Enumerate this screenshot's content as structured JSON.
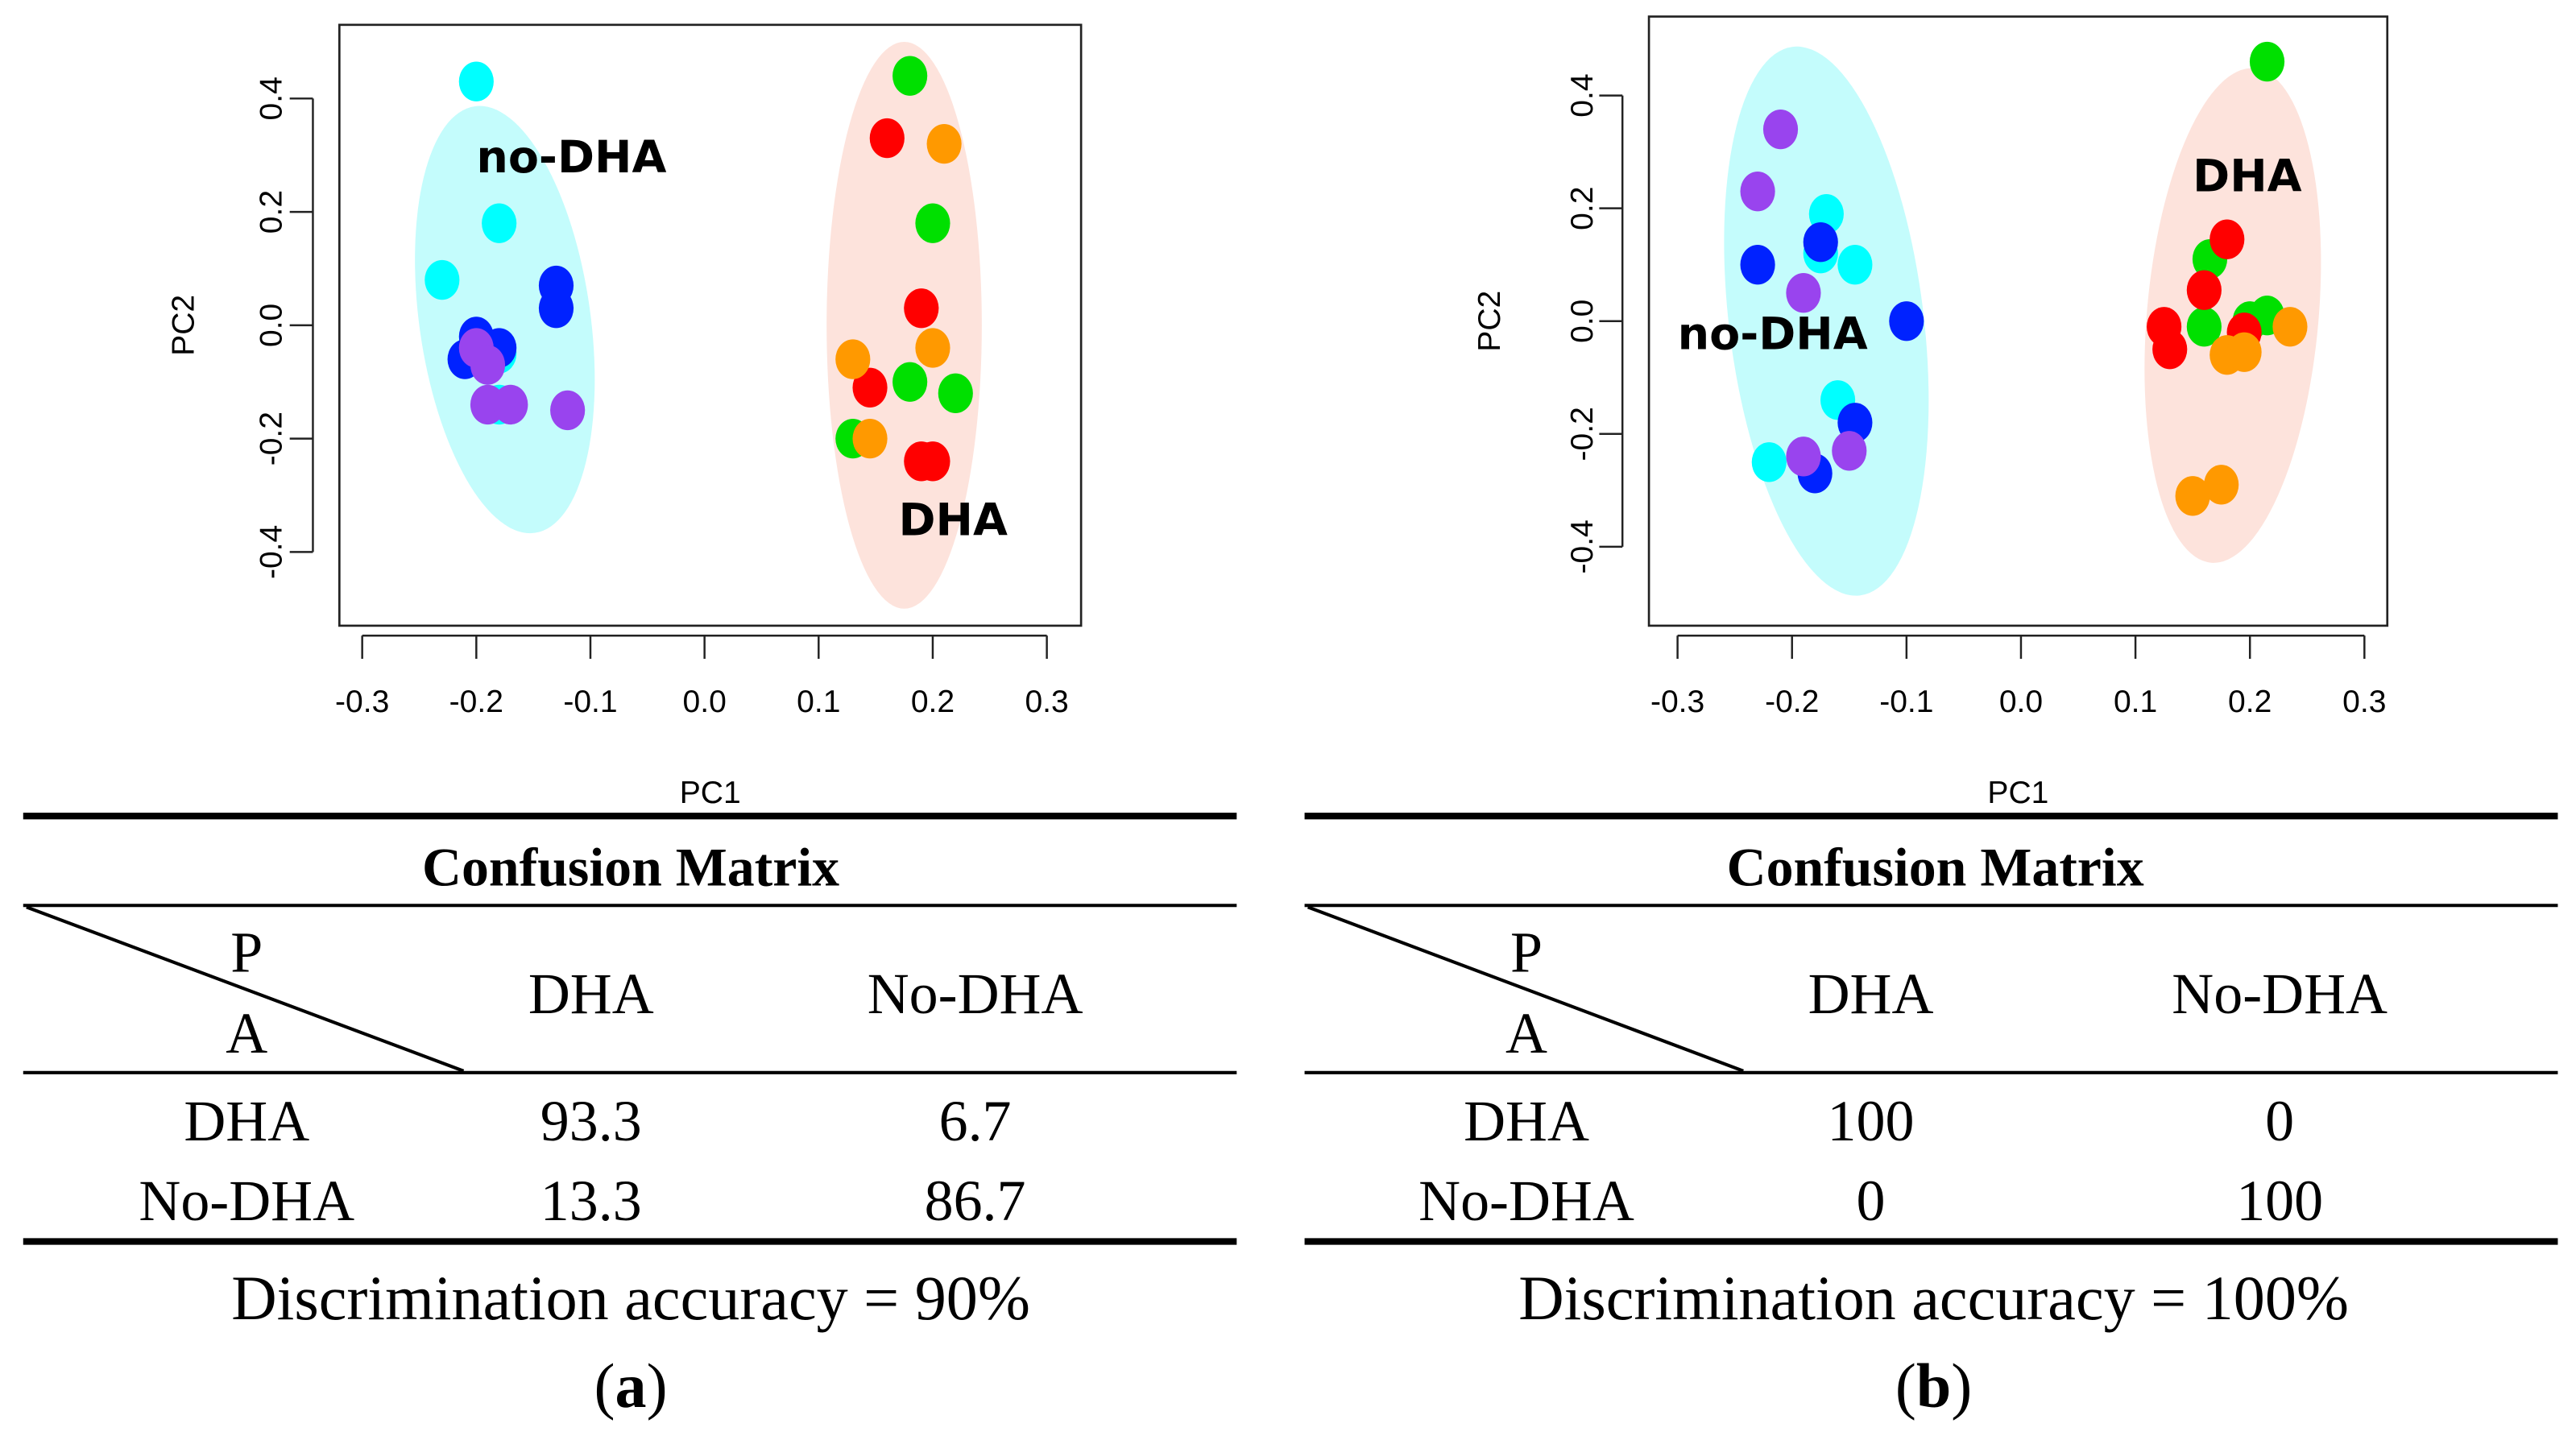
{
  "chart_data": [
    {
      "type": "scatter",
      "panel_label": "a",
      "xlabel": "PC1",
      "ylabel": "PC2",
      "xlim": [
        -0.32,
        0.33
      ],
      "ylim": [
        -0.53,
        0.53
      ],
      "xticks": [
        "-0.3",
        "-0.2",
        "-0.1",
        "0.0",
        "0.1",
        "0.2",
        "0.3"
      ],
      "xtick_values": [
        -0.3,
        -0.2,
        -0.1,
        0.0,
        0.1,
        0.2,
        0.3
      ],
      "yticks": [
        "-0.4",
        "-0.2",
        "0.0",
        "0.2",
        "0.4"
      ],
      "ytick_values": [
        -0.4,
        -0.2,
        0.0,
        0.2,
        0.4
      ],
      "grid": false,
      "legend": "none",
      "groups": [
        {
          "name": "no-DHA",
          "label_pos": [
            -0.2,
            0.27
          ],
          "ellipse": {
            "cx": -0.175,
            "cy": 0.01,
            "rx": 0.075,
            "ry": 0.38,
            "angle": -8
          },
          "fill": "#c4fcfc"
        },
        {
          "name": "DHA",
          "label_pos": [
            0.17,
            -0.37
          ],
          "ellipse": {
            "cx": 0.175,
            "cy": 0.0,
            "rx": 0.068,
            "ry": 0.5,
            "angle": 0
          },
          "fill": "#fde3dc"
        }
      ],
      "series": [
        {
          "name": "cyan",
          "color": "#00ffff",
          "points": [
            [
              -0.2,
              0.43
            ],
            [
              -0.18,
              0.18
            ],
            [
              -0.23,
              0.08
            ],
            [
              -0.18,
              -0.05
            ],
            [
              -0.18,
              -0.14
            ]
          ]
        },
        {
          "name": "blue",
          "color": "#0022ff",
          "points": [
            [
              -0.13,
              0.07
            ],
            [
              -0.13,
              0.03
            ],
            [
              -0.2,
              -0.02
            ],
            [
              -0.21,
              -0.06
            ],
            [
              -0.18,
              -0.04
            ]
          ]
        },
        {
          "name": "purple",
          "color": "#9944ee",
          "points": [
            [
              -0.2,
              -0.04
            ],
            [
              -0.19,
              -0.07
            ],
            [
              -0.19,
              -0.14
            ],
            [
              -0.17,
              -0.14
            ],
            [
              -0.12,
              -0.15
            ]
          ]
        },
        {
          "name": "green",
          "color": "#00e000",
          "points": [
            [
              0.18,
              0.44
            ],
            [
              0.2,
              0.18
            ],
            [
              0.18,
              -0.1
            ],
            [
              0.22,
              -0.12
            ],
            [
              0.13,
              -0.2
            ]
          ]
        },
        {
          "name": "red",
          "color": "#ff0000",
          "points": [
            [
              0.16,
              0.33
            ],
            [
              0.19,
              0.03
            ],
            [
              0.145,
              -0.11
            ],
            [
              0.19,
              -0.24
            ],
            [
              0.2,
              -0.24
            ]
          ]
        },
        {
          "name": "orange",
          "color": "#ff9900",
          "points": [
            [
              0.21,
              0.32
            ],
            [
              0.2,
              -0.04
            ],
            [
              0.13,
              -0.06
            ],
            [
              0.145,
              -0.2
            ]
          ]
        }
      ]
    },
    {
      "type": "scatter",
      "panel_label": "b",
      "xlabel": "PC1",
      "ylabel": "PC2",
      "xlim": [
        -0.325,
        0.32
      ],
      "ylim": [
        -0.54,
        0.54
      ],
      "xticks": [
        "-0.3",
        "-0.2",
        "-0.1",
        "0.0",
        "0.1",
        "0.2",
        "0.3"
      ],
      "xtick_values": [
        -0.3,
        -0.2,
        -0.1,
        0.0,
        0.1,
        0.2,
        0.3
      ],
      "yticks": [
        "-0.4",
        "-0.2",
        "0.0",
        "0.2",
        "0.4"
      ],
      "ytick_values": [
        -0.4,
        -0.2,
        0.0,
        0.2,
        0.4
      ],
      "grid": false,
      "legend": "none",
      "groups": [
        {
          "name": "no-DHA",
          "label_pos": [
            -0.3,
            -0.05
          ],
          "ellipse": {
            "cx": -0.17,
            "cy": 0.0,
            "rx": 0.085,
            "ry": 0.49,
            "angle": -7
          },
          "fill": "#c4fcfc"
        },
        {
          "name": "DHA",
          "label_pos": [
            0.15,
            0.23
          ],
          "ellipse": {
            "cx": 0.185,
            "cy": 0.01,
            "rx": 0.075,
            "ry": 0.44,
            "angle": 5
          },
          "fill": "#fde3dc"
        }
      ],
      "series": [
        {
          "name": "cyan",
          "color": "#00ffff",
          "points": [
            [
              -0.17,
              0.19
            ],
            [
              -0.175,
              0.12
            ],
            [
              -0.145,
              0.1
            ],
            [
              -0.16,
              -0.14
            ],
            [
              -0.22,
              -0.25
            ]
          ]
        },
        {
          "name": "blue",
          "color": "#0022ff",
          "points": [
            [
              -0.175,
              0.14
            ],
            [
              -0.23,
              0.1
            ],
            [
              -0.1,
              0.0
            ],
            [
              -0.145,
              -0.18
            ],
            [
              -0.18,
              -0.27
            ]
          ]
        },
        {
          "name": "purple",
          "color": "#9944ee",
          "points": [
            [
              -0.21,
              0.34
            ],
            [
              -0.23,
              0.23
            ],
            [
              -0.19,
              0.05
            ],
            [
              -0.19,
              -0.24
            ],
            [
              -0.15,
              -0.23
            ]
          ]
        },
        {
          "name": "green",
          "color": "#00e000",
          "points": [
            [
              0.215,
              0.46
            ],
            [
              0.165,
              0.11
            ],
            [
              0.16,
              -0.01
            ],
            [
              0.2,
              0.0
            ],
            [
              0.215,
              0.01
            ]
          ]
        },
        {
          "name": "red",
          "color": "#ff0000",
          "points": [
            [
              0.18,
              0.145
            ],
            [
              0.16,
              0.055
            ],
            [
              0.125,
              -0.01
            ],
            [
              0.13,
              -0.05
            ],
            [
              0.195,
              -0.02
            ]
          ]
        },
        {
          "name": "orange",
          "color": "#ff9900",
          "points": [
            [
              0.235,
              -0.01
            ],
            [
              0.18,
              -0.06
            ],
            [
              0.195,
              -0.055
            ],
            [
              0.15,
              -0.31
            ],
            [
              0.175,
              -0.29
            ]
          ]
        }
      ]
    }
  ],
  "tables": [
    {
      "title": "Confusion Matrix",
      "corner_top": "P",
      "corner_bottom": "A",
      "col_headers": [
        "DHA",
        "No-DHA"
      ],
      "rows": [
        {
          "label": "DHA",
          "values": [
            "93.3",
            "6.7"
          ]
        },
        {
          "label": "No-DHA",
          "values": [
            "13.3",
            "86.7"
          ]
        }
      ],
      "accuracy_text": "Discrimination accuracy = 90%",
      "caption_open": "(",
      "caption_letter": "a",
      "caption_close": ")"
    },
    {
      "title": "Confusion Matrix",
      "corner_top": "P",
      "corner_bottom": "A",
      "col_headers": [
        "DHA",
        "No-DHA"
      ],
      "rows": [
        {
          "label": "DHA",
          "values": [
            "100",
            "0"
          ]
        },
        {
          "label": "No-DHA",
          "values": [
            "0",
            "100"
          ]
        }
      ],
      "accuracy_text": "Discrimination accuracy = 100%",
      "caption_open": "(",
      "caption_letter": "b",
      "caption_close": ")"
    }
  ]
}
